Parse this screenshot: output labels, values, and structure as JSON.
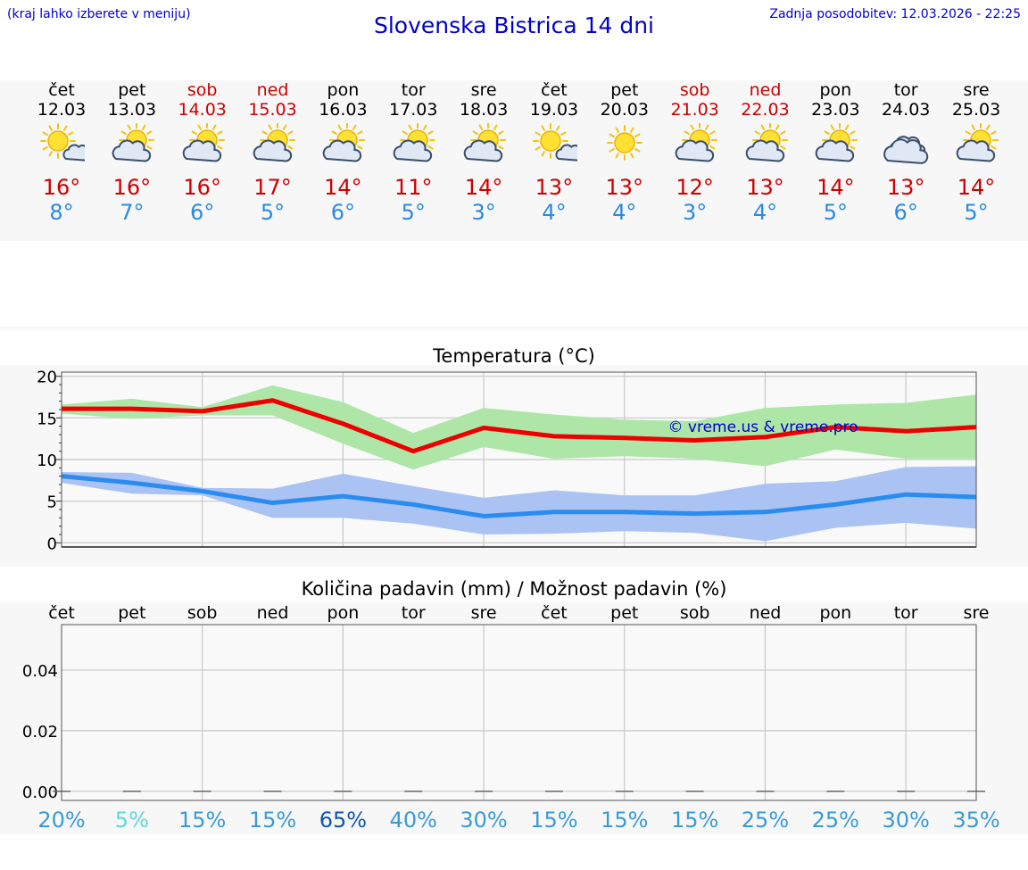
{
  "header": {
    "note": "(kraj lahko izberete v meniju)",
    "title": "Slovenska Bistrica 14 dni",
    "last_update": "Zadnja posodobitev: 12.03.2026 - 22:25"
  },
  "days": [
    {
      "name": "čet",
      "date": "12.03",
      "weekend": false,
      "icon": "partly-sunny-icon",
      "tmax": "16°",
      "tmin": "8°"
    },
    {
      "name": "pet",
      "date": "13.03",
      "weekend": false,
      "icon": "sun-cloud-icon",
      "tmax": "16°",
      "tmin": "7°"
    },
    {
      "name": "sob",
      "date": "14.03",
      "weekend": true,
      "icon": "sun-cloud-icon",
      "tmax": "16°",
      "tmin": "6°"
    },
    {
      "name": "ned",
      "date": "15.03",
      "weekend": true,
      "icon": "sun-cloud-icon",
      "tmax": "17°",
      "tmin": "5°"
    },
    {
      "name": "pon",
      "date": "16.03",
      "weekend": false,
      "icon": "sun-cloud-icon",
      "tmax": "14°",
      "tmin": "6°"
    },
    {
      "name": "tor",
      "date": "17.03",
      "weekend": false,
      "icon": "sun-cloud-icon",
      "tmax": "11°",
      "tmin": "5°"
    },
    {
      "name": "sre",
      "date": "18.03",
      "weekend": false,
      "icon": "sun-cloud-icon",
      "tmax": "14°",
      "tmin": "3°"
    },
    {
      "name": "čet",
      "date": "19.03",
      "weekend": false,
      "icon": "partly-sunny-icon",
      "tmax": "13°",
      "tmin": "4°"
    },
    {
      "name": "pet",
      "date": "20.03",
      "weekend": false,
      "icon": "sun-icon",
      "tmax": "13°",
      "tmin": "4°"
    },
    {
      "name": "sob",
      "date": "21.03",
      "weekend": true,
      "icon": "sun-cloud-icon",
      "tmax": "12°",
      "tmin": "3°"
    },
    {
      "name": "ned",
      "date": "22.03",
      "weekend": true,
      "icon": "sun-cloud-icon",
      "tmax": "13°",
      "tmin": "4°"
    },
    {
      "name": "pon",
      "date": "23.03",
      "weekend": false,
      "icon": "sun-cloud-icon",
      "tmax": "14°",
      "tmin": "5°"
    },
    {
      "name": "tor",
      "date": "24.03",
      "weekend": false,
      "icon": "cloud-icon",
      "tmax": "13°",
      "tmin": "6°"
    },
    {
      "name": "sre",
      "date": "25.03",
      "weekend": false,
      "icon": "sun-cloud-icon",
      "tmax": "14°",
      "tmin": "5°"
    }
  ],
  "colors": {
    "max_line": "#ee0000",
    "max_band": "#aee6a8",
    "min_line": "#2b8cf0",
    "min_band": "#abc3f3",
    "weekend": "#cc0000",
    "watermark": "#0000cc"
  },
  "chart_data": [
    {
      "type": "line",
      "title": "Temperatura (°C)",
      "watermark": "© vreme.us & vreme.pro",
      "ylim": [
        -0.5,
        20.5
      ],
      "yticks": [
        0,
        5,
        10,
        15,
        20
      ],
      "x": [
        0,
        1,
        2,
        3,
        4,
        5,
        6,
        7,
        8,
        9,
        10,
        11,
        12,
        13
      ],
      "series": [
        {
          "name": "max",
          "values": [
            16.1,
            16.1,
            15.8,
            17.1,
            14.3,
            11.0,
            13.8,
            12.8,
            12.6,
            12.3,
            12.7,
            13.9,
            13.4,
            13.9
          ],
          "band_high": [
            16.6,
            17.3,
            16.3,
            18.9,
            16.9,
            13.2,
            16.2,
            15.4,
            14.8,
            14.6,
            16.2,
            16.6,
            16.8,
            17.8
          ],
          "band_low": [
            15.5,
            14.9,
            15.3,
            15.3,
            11.9,
            8.8,
            11.5,
            10.1,
            10.4,
            10.1,
            9.2,
            11.2,
            10.1,
            10.1
          ]
        },
        {
          "name": "min",
          "values": [
            8.0,
            7.2,
            6.2,
            4.8,
            5.6,
            4.6,
            3.2,
            3.7,
            3.7,
            3.5,
            3.7,
            4.6,
            5.8,
            5.5
          ],
          "band_high": [
            8.5,
            8.4,
            6.6,
            6.5,
            8.3,
            6.8,
            5.4,
            6.3,
            5.7,
            5.7,
            7.1,
            7.4,
            9.1,
            9.2
          ],
          "band_low": [
            7.2,
            5.9,
            5.7,
            3.0,
            3.0,
            2.3,
            1.0,
            1.1,
            1.4,
            1.2,
            0.2,
            1.8,
            2.4,
            1.7
          ]
        }
      ]
    },
    {
      "type": "bar",
      "title": "Količina padavin (mm) / Možnost padavin (%)",
      "categories": [
        "čet",
        "pet",
        "sob",
        "ned",
        "pon",
        "tor",
        "sre",
        "čet",
        "pet",
        "sob",
        "ned",
        "pon",
        "tor",
        "sre"
      ],
      "values": [
        0,
        0,
        0,
        0,
        0,
        0,
        0,
        0,
        0,
        0,
        0,
        0,
        0,
        0
      ],
      "ylim": [
        -0.003,
        0.055
      ],
      "yticks": [
        "0.00",
        "0.02",
        "0.04"
      ],
      "probability": [
        "20%",
        "5%",
        "15%",
        "15%",
        "65%",
        "40%",
        "30%",
        "15%",
        "15%",
        "15%",
        "25%",
        "25%",
        "30%",
        "35%"
      ],
      "probability_colors": [
        "#3a9ad6",
        "#5fd8d8",
        "#3a9ad6",
        "#3a9ad6",
        "#1255a8",
        "#3a9ad6",
        "#3a9ad6",
        "#3a9ad6",
        "#3a9ad6",
        "#3a9ad6",
        "#3a9ad6",
        "#3a9ad6",
        "#3a9ad6",
        "#3a9ad6"
      ]
    }
  ]
}
